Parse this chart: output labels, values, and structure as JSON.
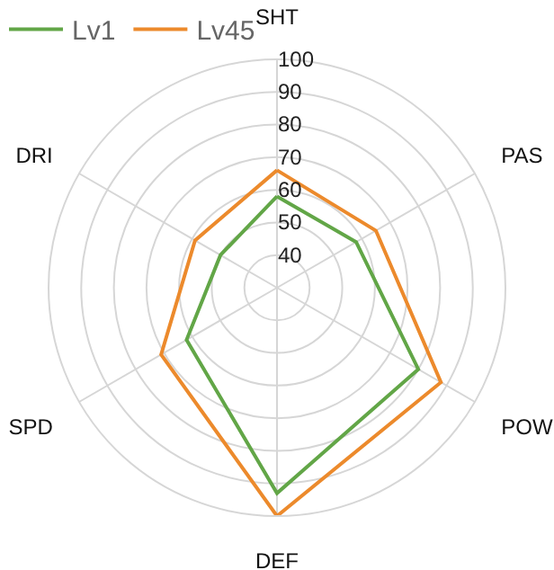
{
  "chart_data": {
    "type": "radar",
    "categories": [
      "SHT",
      "PAS",
      "POW",
      "DEF",
      "SPD",
      "DRI"
    ],
    "series": [
      {
        "name": "Lv1",
        "color": "#62a647",
        "values": [
          58,
          58,
          80,
          93,
          62,
          50
        ]
      },
      {
        "name": "Lv45",
        "color": "#ec8a2c",
        "values": [
          66,
          65,
          88,
          100,
          71,
          59
        ]
      }
    ],
    "ylim": [
      30,
      100
    ],
    "yticks": [
      40,
      50,
      60,
      70,
      80,
      90,
      100
    ],
    "grid": true,
    "legend": "top left",
    "marker": "none"
  }
}
